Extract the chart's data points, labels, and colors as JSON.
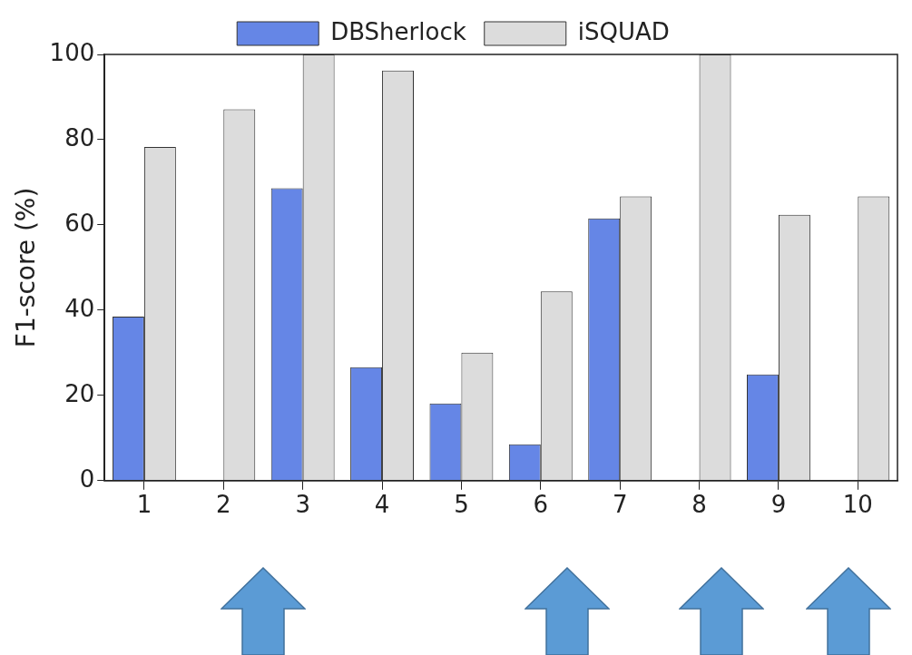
{
  "chart_data": {
    "type": "bar",
    "categories": [
      "1",
      "2",
      "3",
      "4",
      "5",
      "6",
      "7",
      "8",
      "9",
      "10"
    ],
    "ylabel": "F1-score (%)",
    "series": [
      {
        "name": "DBSherlock",
        "color": "#6586e6",
        "values": [
          38.5,
          0,
          68.6,
          26.6,
          18.1,
          8.5,
          61.5,
          0,
          24.9,
          0
        ]
      },
      {
        "name": "iSQUAD",
        "color": "#dcdcdc",
        "values": [
          78.3,
          87.1,
          100,
          96.2,
          30.0,
          44.4,
          66.7,
          100,
          62.4,
          66.7
        ]
      }
    ],
    "ylim": [
      0,
      100
    ],
    "yticks": [
      0,
      20,
      40,
      60,
      80,
      100
    ],
    "grid": false,
    "legend": "top"
  }
}
